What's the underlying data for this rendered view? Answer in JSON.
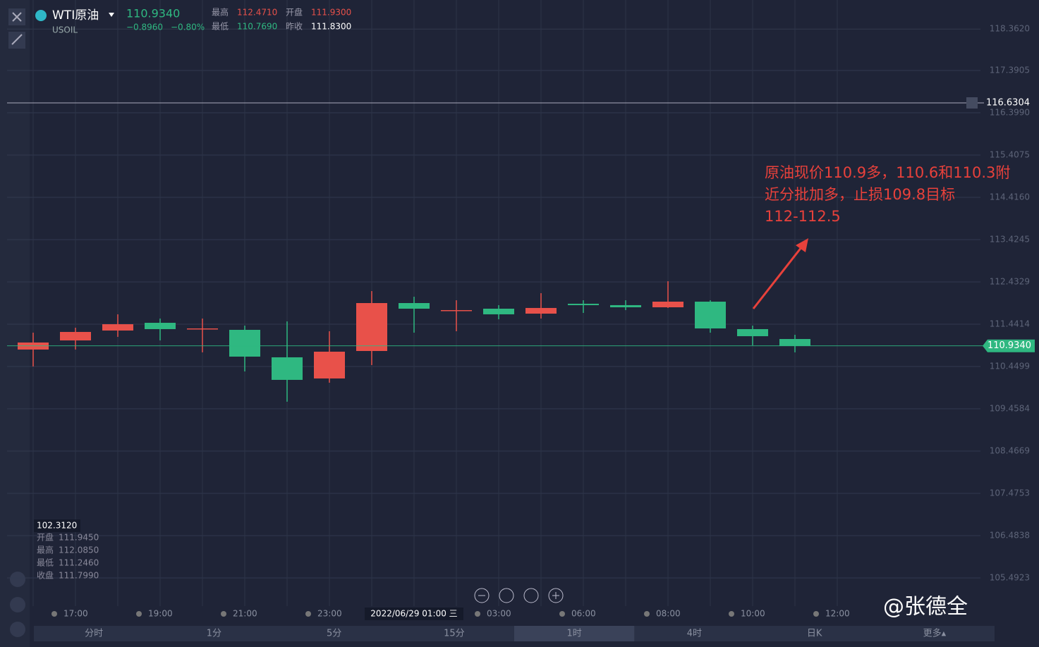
{
  "header": {
    "symbol": "WTI原油",
    "code": "USOIL",
    "price": "110.9340",
    "change": "−0.8960",
    "change_pct": "−0.80%",
    "stats": [
      [
        "最高",
        "112.4710"
      ],
      [
        "开盘",
        "111.9300"
      ],
      [
        "最低",
        "110.7690"
      ],
      [
        "昨收",
        "111.8300"
      ]
    ]
  },
  "tooltip": {
    "price": "102.3120",
    "rows": [
      [
        "开盘",
        "111.9450"
      ],
      [
        "最高",
        "112.0850"
      ],
      [
        "最低",
        "111.2460"
      ],
      [
        "收盘",
        "111.7990"
      ]
    ]
  },
  "chart_data": {
    "type": "candlestick",
    "categories": [
      null,
      "17:00",
      null,
      "19:00",
      null,
      "21:00",
      null,
      "23:00",
      null,
      "2022/06/29 01:00 三",
      null,
      "03:00",
      null,
      "06:00",
      null,
      "08:00",
      null,
      "10:00",
      null,
      "12:00"
    ],
    "open": [
      110.847,
      111.061,
      111.293,
      111.474,
      111.342,
      111.309,
      110.665,
      110.169,
      110.813,
      111.937,
      111.772,
      111.805,
      111.689,
      111.921,
      111.888,
      111.838,
      111.97,
      111.326,
      111.094,
      null
    ],
    "high": [
      111.243,
      111.359,
      111.673,
      111.574,
      111.574,
      111.408,
      111.507,
      111.276,
      112.218,
      112.086,
      112.003,
      111.888,
      112.169,
      112.003,
      112.003,
      112.449,
      112.003,
      111.408,
      111.193,
      null
    ],
    "low": [
      110.45,
      110.847,
      111.144,
      111.061,
      110.781,
      110.334,
      109.624,
      110.069,
      110.483,
      111.243,
      111.276,
      111.557,
      111.574,
      111.706,
      111.772,
      111.822,
      111.243,
      110.946,
      110.781,
      null
    ],
    "close": [
      111.012,
      111.26,
      111.441,
      111.326,
      111.342,
      110.681,
      110.136,
      110.797,
      111.937,
      111.805,
      111.772,
      111.673,
      111.822,
      111.888,
      111.838,
      111.97,
      111.342,
      111.16,
      110.934,
      null
    ],
    "up_color": "#e8514a",
    "down_color": "#2fb881",
    "ylim": [
      104.831,
      119.043
    ],
    "yticks": [
      {
        "value": 118.362,
        "label": "118.3620"
      },
      {
        "value": 117.3905,
        "label": "117.3905"
      },
      {
        "value": 116.399,
        "label": "116.3990"
      },
      {
        "value": 115.4075,
        "label": "115.4075"
      },
      {
        "value": 114.416,
        "label": "114.4160"
      },
      {
        "value": 113.4245,
        "label": "113.4245"
      },
      {
        "value": 112.4329,
        "label": "112.4329"
      },
      {
        "value": 111.4414,
        "label": "111.4414"
      },
      {
        "value": 110.4499,
        "label": "110.4499"
      },
      {
        "value": 109.4584,
        "label": "109.4584"
      },
      {
        "value": 108.4669,
        "label": "108.4669"
      },
      {
        "value": 107.4753,
        "label": "107.4753"
      },
      {
        "value": 106.4838,
        "label": "106.4838"
      },
      {
        "value": 105.4923,
        "label": "105.4923"
      }
    ],
    "price_line": {
      "value": 110.934,
      "label": "110.9340"
    },
    "alert_line": {
      "value": 116.6304,
      "label": "116.6304"
    },
    "annotation": [
      "原油现价110.9多，110.6和110.3附",
      "近分批加多，止损109.8目标",
      "112-112.5"
    ],
    "grid": true
  },
  "timeframes": [
    "分时",
    "1分",
    "5分",
    "15分",
    "1时",
    "4时",
    "日K",
    "更多▴"
  ],
  "active_timeframe": 4,
  "watermark": "@张德全"
}
